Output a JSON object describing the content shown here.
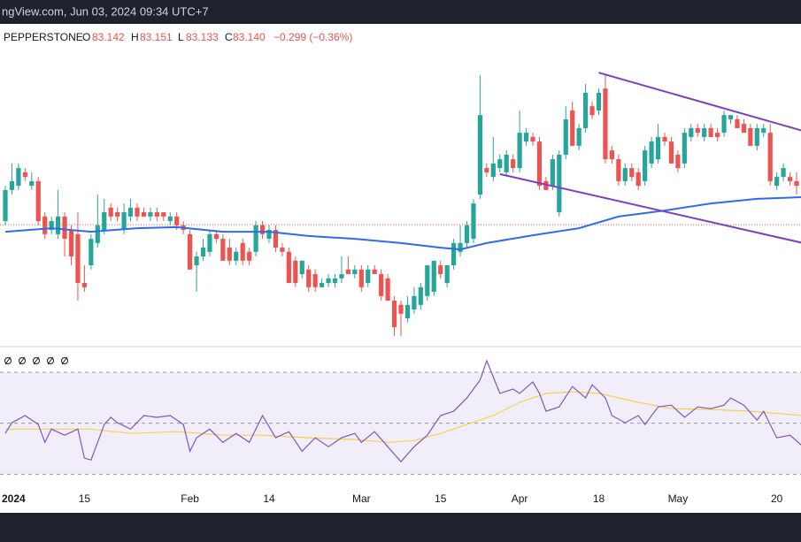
{
  "header": {
    "text": "ngView.com, Jun 03, 2024 09:34 UTC+7"
  },
  "legend": {
    "symbol": "PEPPERSTONE",
    "fields": [
      {
        "label": "O",
        "value": "83.142"
      },
      {
        "label": "H",
        "value": "83.151"
      },
      {
        "label": "L",
        "value": "83.133"
      },
      {
        "label": "C",
        "value": "83.140"
      }
    ],
    "change": "−0.299 (−0.36%)"
  },
  "chart_data": {
    "type": "candlestick",
    "up_color": "#26a69a",
    "down_color": "#ef5350",
    "ylim": [
      79.74,
      88.82
    ],
    "price_line": 83.14,
    "candles": [
      [
        83.24,
        84.24,
        83.12,
        84.12
      ],
      [
        84.12,
        84.87,
        83.99,
        84.37
      ],
      [
        84.24,
        84.87,
        84.12,
        84.74
      ],
      [
        84.62,
        84.74,
        84.37,
        84.49
      ],
      [
        84.24,
        84.62,
        84.12,
        84.37
      ],
      [
        84.37,
        84.49,
        83.12,
        83.24
      ],
      [
        83.37,
        83.49,
        82.74,
        82.87
      ],
      [
        82.99,
        83.37,
        82.87,
        83.24
      ],
      [
        82.87,
        84.12,
        82.74,
        83.37
      ],
      [
        83.37,
        83.49,
        82.24,
        82.74
      ],
      [
        82.99,
        83.12,
        81.99,
        82.24
      ],
      [
        82.87,
        83.49,
        80.99,
        81.49
      ],
      [
        81.49,
        81.99,
        81.24,
        81.37
      ],
      [
        81.99,
        82.87,
        81.87,
        82.74
      ],
      [
        82.62,
        83.99,
        82.49,
        83.12
      ],
      [
        82.99,
        83.87,
        82.87,
        83.49
      ],
      [
        83.62,
        83.74,
        83.24,
        83.37
      ],
      [
        83.49,
        83.62,
        83.24,
        83.37
      ],
      [
        82.99,
        83.74,
        82.87,
        83.49
      ],
      [
        83.37,
        83.87,
        83.24,
        83.62
      ],
      [
        83.62,
        83.74,
        83.24,
        83.37
      ],
      [
        83.49,
        83.62,
        83.37,
        83.37
      ],
      [
        83.37,
        83.62,
        83.24,
        83.49
      ],
      [
        83.49,
        83.62,
        83.24,
        83.37
      ],
      [
        83.49,
        83.49,
        83.24,
        83.37
      ],
      [
        83.24,
        83.49,
        83.12,
        83.37
      ],
      [
        83.37,
        83.49,
        82.99,
        83.12
      ],
      [
        83.12,
        83.24,
        82.87,
        82.99
      ],
      [
        82.87,
        82.99,
        81.87,
        81.87
      ],
      [
        81.99,
        82.37,
        81.24,
        82.24
      ],
      [
        82.24,
        82.74,
        82.12,
        82.49
      ],
      [
        82.37,
        82.99,
        82.24,
        82.87
      ],
      [
        82.87,
        82.99,
        82.62,
        82.74
      ],
      [
        82.74,
        82.87,
        82.12,
        82.12
      ],
      [
        82.49,
        82.74,
        81.99,
        82.12
      ],
      [
        82.12,
        82.49,
        81.99,
        82.37
      ],
      [
        82.62,
        82.74,
        81.99,
        82.12
      ],
      [
        82.37,
        82.49,
        81.99,
        82.12
      ],
      [
        82.37,
        83.24,
        82.24,
        83.12
      ],
      [
        83.12,
        83.24,
        82.74,
        82.87
      ],
      [
        82.74,
        83.12,
        82.62,
        82.99
      ],
      [
        82.99,
        83.12,
        82.37,
        82.49
      ],
      [
        82.49,
        82.62,
        82.24,
        82.37
      ],
      [
        82.37,
        82.49,
        81.49,
        81.49
      ],
      [
        82.12,
        82.24,
        81.37,
        81.49
      ],
      [
        81.74,
        82.12,
        81.62,
        82.12
      ],
      [
        81.87,
        81.99,
        81.24,
        81.37
      ],
      [
        81.74,
        81.87,
        81.24,
        81.37
      ],
      [
        81.37,
        81.62,
        81.37,
        81.49
      ],
      [
        81.49,
        81.74,
        81.37,
        81.62
      ],
      [
        81.49,
        81.74,
        81.37,
        81.62
      ],
      [
        81.62,
        82.24,
        81.49,
        81.74
      ],
      [
        81.87,
        82.24,
        81.74,
        81.74
      ],
      [
        81.74,
        81.99,
        81.62,
        81.87
      ],
      [
        81.87,
        81.99,
        81.24,
        81.37
      ],
      [
        81.49,
        81.99,
        81.37,
        81.87
      ],
      [
        81.87,
        81.99,
        81.74,
        81.74
      ],
      [
        81.74,
        81.87,
        80.99,
        81.12
      ],
      [
        81.62,
        81.74,
        80.99,
        80.99
      ],
      [
        80.99,
        81.12,
        79.99,
        80.24
      ],
      [
        80.87,
        80.99,
        79.99,
        80.62
      ],
      [
        80.49,
        81.12,
        80.37,
        80.87
      ],
      [
        80.74,
        81.37,
        80.62,
        81.12
      ],
      [
        80.87,
        81.49,
        80.74,
        81.37
      ],
      [
        81.12,
        81.99,
        80.99,
        81.99
      ],
      [
        81.24,
        82.12,
        81.12,
        82.12
      ],
      [
        81.99,
        82.12,
        81.62,
        81.74
      ],
      [
        81.49,
        81.99,
        81.37,
        81.99
      ],
      [
        81.99,
        82.74,
        81.87,
        82.62
      ],
      [
        82.37,
        83.12,
        82.24,
        82.62
      ],
      [
        82.62,
        83.24,
        82.49,
        83.12
      ],
      [
        82.74,
        83.87,
        82.62,
        83.74
      ],
      [
        83.99,
        87.37,
        83.87,
        86.24
      ],
      [
        84.74,
        84.87,
        84.49,
        84.62
      ],
      [
        84.49,
        85.62,
        84.37,
        84.87
      ],
      [
        84.74,
        85.12,
        84.62,
        84.99
      ],
      [
        84.62,
        85.24,
        84.49,
        85.12
      ],
      [
        84.99,
        85.12,
        84.62,
        84.74
      ],
      [
        84.74,
        86.37,
        84.62,
        85.74
      ],
      [
        85.49,
        85.87,
        85.37,
        85.74
      ],
      [
        85.62,
        85.74,
        85.37,
        85.49
      ],
      [
        85.49,
        85.62,
        84.12,
        84.24
      ],
      [
        84.37,
        84.49,
        84.12,
        84.12
      ],
      [
        84.24,
        85.12,
        84.12,
        84.99
      ],
      [
        83.49,
        85.24,
        83.37,
        85.12
      ],
      [
        85.12,
        86.49,
        84.99,
        86.12
      ],
      [
        86.37,
        86.62,
        85.37,
        85.37
      ],
      [
        85.37,
        85.99,
        85.24,
        85.87
      ],
      [
        85.87,
        87.12,
        85.74,
        86.87
      ],
      [
        86.49,
        86.62,
        86.12,
        86.24
      ],
      [
        86.37,
        86.99,
        86.24,
        86.87
      ],
      [
        86.99,
        87.37,
        84.87,
        84.99
      ],
      [
        85.24,
        85.37,
        84.87,
        84.99
      ],
      [
        84.99,
        85.12,
        84.24,
        84.37
      ],
      [
        84.37,
        84.87,
        84.24,
        84.74
      ],
      [
        84.74,
        84.87,
        84.37,
        84.49
      ],
      [
        84.62,
        84.74,
        84.12,
        84.24
      ],
      [
        84.37,
        85.37,
        84.24,
        85.24
      ],
      [
        84.87,
        85.62,
        84.74,
        85.49
      ],
      [
        84.99,
        85.99,
        84.87,
        85.62
      ],
      [
        85.62,
        85.74,
        85.37,
        85.49
      ],
      [
        85.49,
        85.62,
        84.87,
        84.87
      ],
      [
        85.12,
        85.24,
        84.62,
        84.74
      ],
      [
        84.87,
        85.87,
        84.74,
        85.74
      ],
      [
        85.62,
        85.99,
        85.49,
        85.87
      ],
      [
        85.87,
        85.99,
        85.62,
        85.74
      ],
      [
        85.62,
        85.99,
        85.49,
        85.87
      ],
      [
        85.87,
        85.99,
        85.62,
        85.62
      ],
      [
        85.74,
        85.87,
        85.49,
        85.62
      ],
      [
        85.74,
        86.37,
        85.62,
        86.24
      ],
      [
        86.12,
        86.24,
        85.99,
        86.24
      ],
      [
        86.12,
        86.24,
        85.87,
        85.87
      ],
      [
        85.99,
        86.12,
        85.74,
        85.74
      ],
      [
        85.87,
        85.99,
        85.37,
        85.37
      ],
      [
        85.37,
        85.99,
        85.24,
        85.87
      ],
      [
        85.74,
        85.99,
        85.62,
        85.87
      ],
      [
        85.74,
        85.99,
        84.24,
        84.37
      ],
      [
        84.24,
        84.62,
        84.12,
        84.49
      ],
      [
        84.49,
        84.87,
        84.37,
        84.74
      ],
      [
        84.49,
        84.62,
        84.24,
        84.37
      ],
      [
        84.37,
        84.62,
        83.99,
        84.24
      ]
    ],
    "ma": {
      "color": "#2f6bf0",
      "x": [
        0,
        7,
        13,
        20,
        26,
        33,
        40,
        46,
        53,
        60,
        66,
        69,
        73,
        80,
        87,
        93,
        100,
        107,
        114,
        121
      ],
      "values": [
        82.94,
        83.04,
        82.94,
        83.04,
        83.07,
        82.94,
        82.94,
        82.82,
        82.74,
        82.62,
        82.49,
        82.44,
        82.62,
        82.84,
        83.04,
        83.37,
        83.54,
        83.74,
        83.87,
        83.92
      ]
    },
    "trendlines": {
      "color": "#7b3fc4",
      "lines": [
        {
          "x": [
            90,
            121
          ],
          "values": [
            87.44,
            85.79
          ]
        },
        {
          "x": [
            75,
            121
          ],
          "values": [
            84.57,
            82.62
          ]
        }
      ]
    },
    "xticks": [
      {
        "value": 1,
        "label": "2024"
      },
      {
        "value": 12,
        "label": "15"
      },
      {
        "value": 28,
        "label": "Feb"
      },
      {
        "value": 40,
        "label": "14"
      },
      {
        "value": 54,
        "label": "Mar"
      },
      {
        "value": 66,
        "label": "15"
      },
      {
        "value": 78,
        "label": "Apr"
      },
      {
        "value": 90,
        "label": "18"
      },
      {
        "value": 102,
        "label": "May"
      },
      {
        "value": 117,
        "label": "20"
      }
    ],
    "rsi": {
      "ylim": [
        27,
        79
      ],
      "bands": [
        70,
        50,
        30
      ],
      "color": "#7e57c2",
      "ma_color": "#f2d24b",
      "x": [
        0,
        1,
        3,
        5,
        6,
        7,
        9,
        11,
        12,
        13,
        15,
        16,
        17,
        19,
        21,
        23,
        25,
        27,
        28,
        29,
        31,
        33,
        35,
        37,
        39,
        41,
        43,
        45,
        47,
        49,
        51,
        53,
        54,
        56,
        58,
        60,
        62,
        64,
        66,
        68,
        70,
        72,
        73,
        75,
        77,
        78,
        80,
        81,
        82,
        84,
        86,
        88,
        89,
        91,
        92,
        94,
        96,
        97,
        99,
        101,
        103,
        105,
        107,
        109,
        110,
        112,
        114,
        115,
        117,
        119,
        121
      ],
      "values": [
        46.0,
        50.2,
        53.0,
        49.5,
        42.5,
        47.7,
        45.3,
        47.7,
        36.3,
        35.6,
        49.5,
        52.3,
        50.2,
        47.7,
        53.0,
        52.3,
        53.0,
        49.5,
        39.0,
        44.3,
        47.7,
        42.5,
        46.0,
        42.5,
        53.0,
        44.3,
        46.7,
        39.0,
        44.3,
        40.8,
        44.3,
        46.0,
        42.5,
        46.7,
        40.8,
        34.9,
        40.8,
        45.3,
        53.0,
        54.7,
        59.9,
        66.9,
        74.5,
        61.7,
        63.4,
        61.7,
        66.2,
        61.7,
        54.7,
        56.4,
        64.4,
        59.9,
        65.1,
        59.9,
        53.0,
        50.2,
        53.0,
        49.5,
        56.4,
        57.1,
        52.3,
        56.4,
        55.7,
        57.1,
        59.9,
        57.1,
        51.2,
        54.7,
        44.3,
        45.3,
        40.8
      ],
      "ma_x": [
        0,
        13,
        19,
        26,
        33,
        39,
        46,
        53,
        58,
        62,
        66,
        70,
        74,
        78,
        82,
        86,
        90,
        96,
        101,
        107,
        113,
        121
      ],
      "ma_values": [
        47.7,
        47.7,
        46.0,
        46.7,
        45.3,
        45.3,
        44.3,
        43.6,
        42.5,
        43.2,
        46.0,
        49.5,
        53.0,
        58.2,
        61.7,
        62.3,
        61.7,
        58.2,
        55.7,
        55.4,
        54.7,
        53.0
      ]
    }
  }
}
